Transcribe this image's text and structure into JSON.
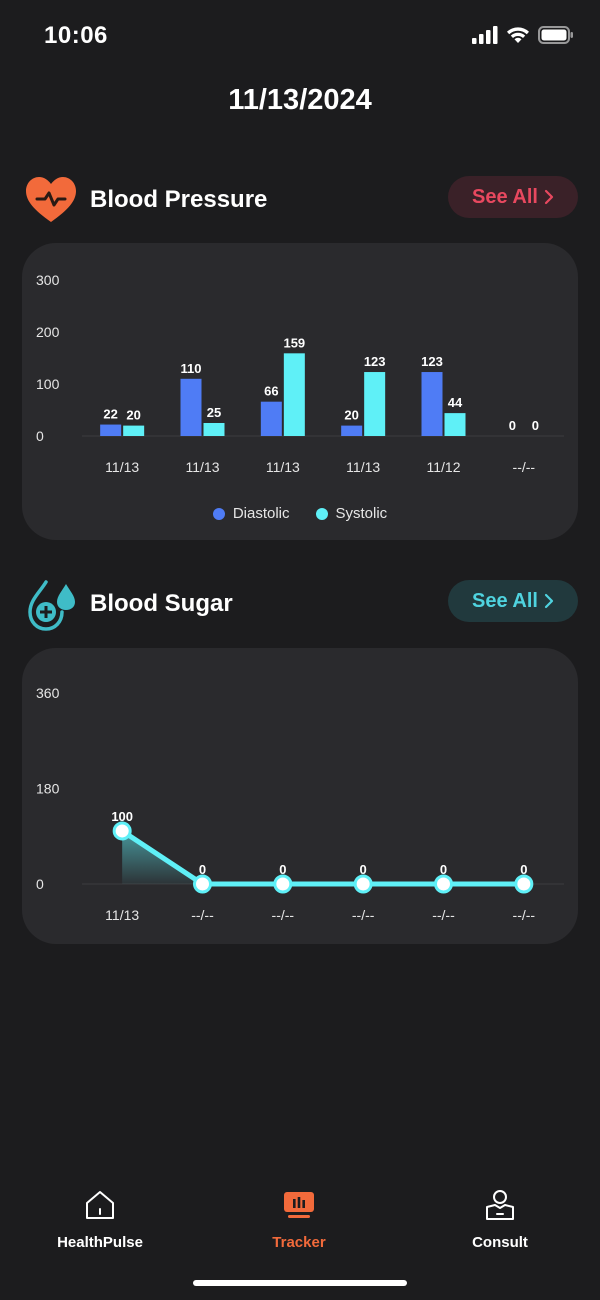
{
  "status": {
    "time": "10:06"
  },
  "header": {
    "date": "11/13/2024"
  },
  "blood_pressure": {
    "title": "Blood Pressure",
    "see_all": "See All",
    "legend": [
      {
        "name": "Diastolic",
        "color": "#4f7cf5"
      },
      {
        "name": "Systolic",
        "color": "#5ff0f7"
      }
    ]
  },
  "blood_sugar": {
    "title": "Blood Sugar",
    "see_all": "See All"
  },
  "chart_data": [
    {
      "type": "bar",
      "categories": [
        "11/13",
        "11/13",
        "11/13",
        "11/13",
        "11/12",
        "--/--"
      ],
      "series": [
        {
          "name": "Diastolic",
          "values": [
            22,
            110,
            66,
            20,
            123,
            0
          ],
          "color": "#4f7cf5"
        },
        {
          "name": "Systolic",
          "values": [
            20,
            25,
            159,
            123,
            44,
            0
          ],
          "color": "#5ff0f7"
        }
      ],
      "yticks": [
        0,
        100,
        200,
        300
      ],
      "ylim": [
        0,
        300
      ],
      "legend": "bottom-center",
      "grid": false
    },
    {
      "type": "line",
      "categories": [
        "11/13",
        "--/--",
        "--/--",
        "--/--",
        "--/--",
        "--/--"
      ],
      "values": [
        100,
        0,
        0,
        0,
        0,
        0
      ],
      "yticks": [
        0,
        180,
        360
      ],
      "ylim": [
        0,
        360
      ],
      "color": "#5ff0f7",
      "grid": false
    }
  ],
  "tabbar": {
    "tabs": [
      {
        "label": "HealthPulse",
        "icon": "home-icon",
        "active": false
      },
      {
        "label": "Tracker",
        "icon": "chart-icon",
        "active": true
      },
      {
        "label": "Consult",
        "icon": "consult-icon",
        "active": false
      }
    ]
  }
}
